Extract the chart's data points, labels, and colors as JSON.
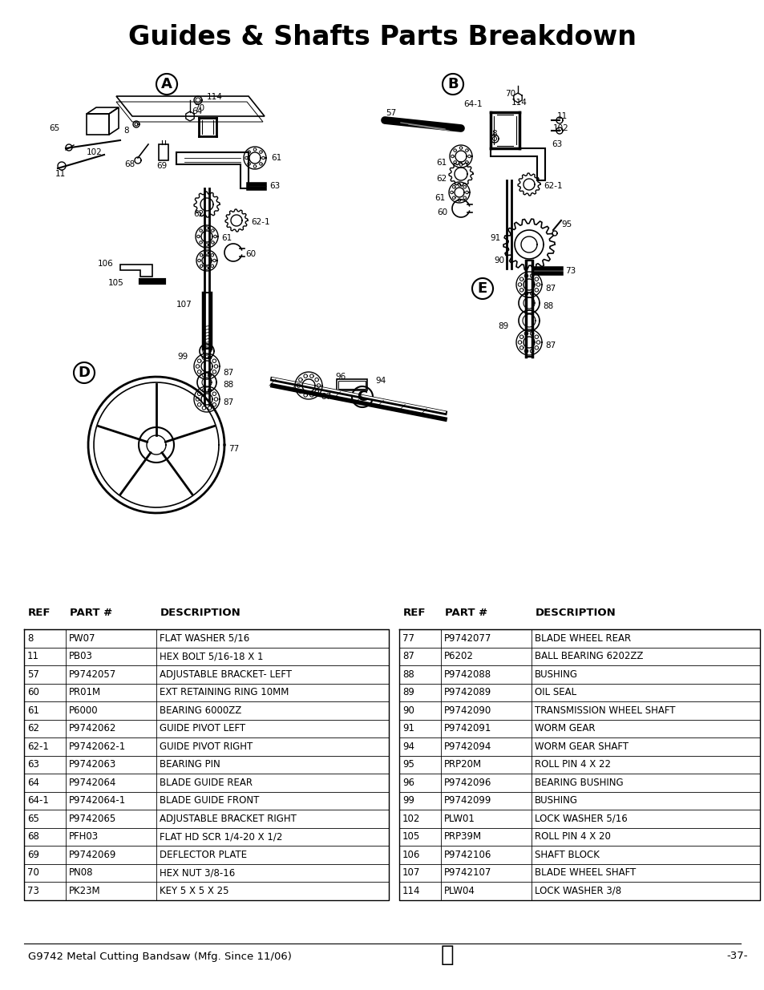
{
  "title": "Guides & Shafts Parts Breakdown",
  "title_fontsize": 24,
  "footer_left": "G9742 Metal Cutting Bandsaw (Mfg. Since 11/06)",
  "footer_right": "-37-",
  "footer_fontsize": 9.5,
  "table_left": {
    "headers": [
      "REF",
      "PART #",
      "DESCRIPTION"
    ],
    "rows": [
      [
        "8",
        "PW07",
        "FLAT WASHER 5/16"
      ],
      [
        "11",
        "PB03",
        "HEX BOLT 5/16-18 X 1"
      ],
      [
        "57",
        "P9742057",
        "ADJUSTABLE BRACKET- LEFT"
      ],
      [
        "60",
        "PR01M",
        "EXT RETAINING RING 10MM"
      ],
      [
        "61",
        "P6000",
        "BEARING 6000ZZ"
      ],
      [
        "62",
        "P9742062",
        "GUIDE PIVOT LEFT"
      ],
      [
        "62-1",
        "P9742062-1",
        "GUIDE PIVOT RIGHT"
      ],
      [
        "63",
        "P9742063",
        "BEARING PIN"
      ],
      [
        "64",
        "P9742064",
        "BLADE GUIDE REAR"
      ],
      [
        "64-1",
        "P9742064-1",
        "BLADE GUIDE FRONT"
      ],
      [
        "65",
        "P9742065",
        "ADJUSTABLE BRACKET RIGHT"
      ],
      [
        "68",
        "PFH03",
        "FLAT HD SCR 1/4-20 X 1/2"
      ],
      [
        "69",
        "P9742069",
        "DEFLECTOR PLATE"
      ],
      [
        "70",
        "PN08",
        "HEX NUT 3/8-16"
      ],
      [
        "73",
        "PK23M",
        "KEY 5 X 5 X 25"
      ]
    ]
  },
  "table_right": {
    "headers": [
      "REF",
      "PART #",
      "DESCRIPTION"
    ],
    "rows": [
      [
        "77",
        "P9742077",
        "BLADE WHEEL REAR"
      ],
      [
        "87",
        "P6202",
        "BALL BEARING 6202ZZ"
      ],
      [
        "88",
        "P9742088",
        "BUSHING"
      ],
      [
        "89",
        "P9742089",
        "OIL SEAL"
      ],
      [
        "90",
        "P9742090",
        "TRANSMISSION WHEEL SHAFT"
      ],
      [
        "91",
        "P9742091",
        "WORM GEAR"
      ],
      [
        "94",
        "P9742094",
        "WORM GEAR SHAFT"
      ],
      [
        "95",
        "PRP20M",
        "ROLL PIN 4 X 22"
      ],
      [
        "96",
        "P9742096",
        "BEARING BUSHING"
      ],
      [
        "99",
        "P9742099",
        "BUSHING"
      ],
      [
        "102",
        "PLW01",
        "LOCK WASHER 5/16"
      ],
      [
        "105",
        "PRP39M",
        "ROLL PIN 4 X 20"
      ],
      [
        "106",
        "P9742106",
        "SHAFT BLOCK"
      ],
      [
        "107",
        "P9742107",
        "BLADE WHEEL SHAFT"
      ],
      [
        "114",
        "PLW04",
        "LOCK WASHER 3/8"
      ]
    ]
  },
  "bg_color": "#ffffff",
  "table_header_fontsize": 9,
  "table_row_fontsize": 8.5,
  "label_fontsize": 7.5,
  "section_label_fontsize": 13
}
